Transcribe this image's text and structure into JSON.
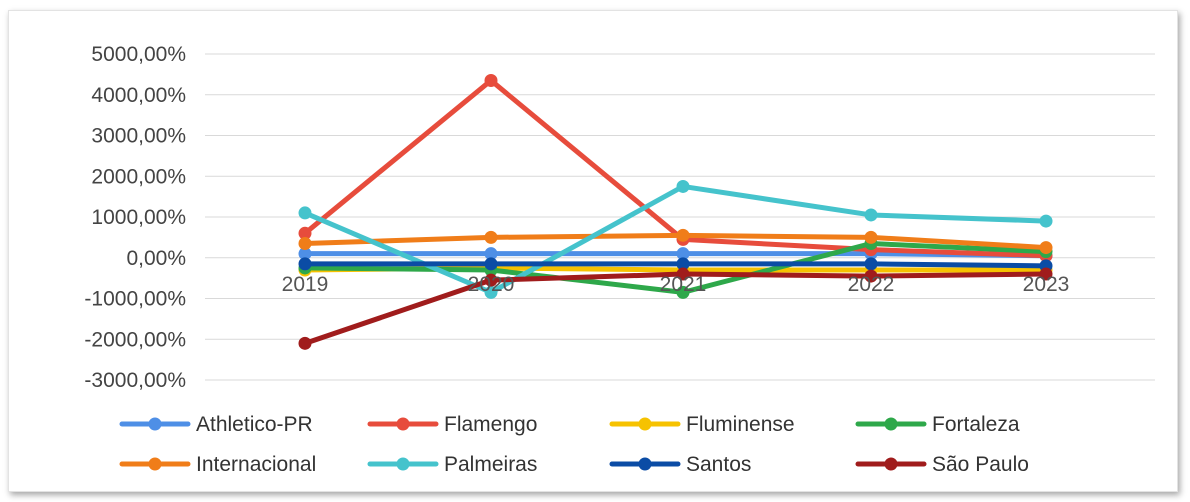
{
  "chart_data": {
    "type": "line",
    "title": "",
    "xlabel": "",
    "ylabel": "",
    "categories": [
      "2019",
      "2020",
      "2021",
      "2022",
      "2023"
    ],
    "ylim": [
      -3000,
      5000
    ],
    "yticks": [
      5000,
      4000,
      3000,
      2000,
      1000,
      0,
      -1000,
      -2000,
      -3000
    ],
    "ytick_labels": [
      "5000,00%",
      "4000,00%",
      "3000,00%",
      "2000,00%",
      "1000,00%",
      "0,00%",
      "-1000,00%",
      "-2000,00%",
      "-3000,00%"
    ],
    "grid": true,
    "legend_position": "bottom",
    "series": [
      {
        "name": "Athletico-PR",
        "color": "#4e8fe6",
        "values": [
          100,
          100,
          100,
          100,
          50
        ]
      },
      {
        "name": "Flamengo",
        "color": "#e74c3c",
        "values": [
          600,
          4350,
          450,
          200,
          50
        ]
      },
      {
        "name": "Fluminense",
        "color": "#f6c200",
        "values": [
          -300,
          -250,
          -300,
          -300,
          -300
        ]
      },
      {
        "name": "Fortaleza",
        "color": "#2ea84a",
        "values": [
          -250,
          -300,
          -850,
          350,
          150
        ]
      },
      {
        "name": "Internacional",
        "color": "#f07d19",
        "values": [
          350,
          500,
          550,
          500,
          250
        ]
      },
      {
        "name": "Palmeiras",
        "color": "#45c3cc",
        "values": [
          1100,
          -850,
          1750,
          1050,
          900
        ]
      },
      {
        "name": "Santos",
        "color": "#0b4ca5",
        "values": [
          -150,
          -150,
          -150,
          -150,
          -200
        ]
      },
      {
        "name": "São Paulo",
        "color": "#a01c1c",
        "values": [
          -2100,
          -550,
          -400,
          -450,
          -400
        ]
      }
    ]
  }
}
